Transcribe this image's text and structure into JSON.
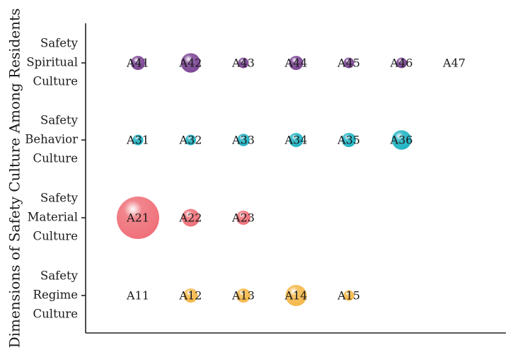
{
  "chart_data": {
    "type": "scatter",
    "title": "",
    "xlabel": "",
    "ylabel": "Dimensions of Safety Culture Among Residents",
    "grid": false,
    "legend": "none",
    "categories": [
      {
        "key": "regime",
        "lines": [
          "Safety",
          "Regime",
          "Culture"
        ]
      },
      {
        "key": "material",
        "lines": [
          "Safety",
          "Material",
          "Culture"
        ]
      },
      {
        "key": "behavior",
        "lines": [
          "Safety",
          "Behavior",
          "Culture"
        ]
      },
      {
        "key": "spiritual",
        "lines": [
          "Safety",
          "Spiritual",
          "Culture"
        ]
      }
    ],
    "series": [
      {
        "category": "regime",
        "color": "#f5b84a",
        "points": [
          {
            "label": "A11",
            "x": 1,
            "size": 0
          },
          {
            "label": "A12",
            "x": 2,
            "size": 2
          },
          {
            "label": "A13",
            "x": 3,
            "size": 2
          },
          {
            "label": "A14",
            "x": 4,
            "size": 4
          },
          {
            "label": "A15",
            "x": 5,
            "size": 1
          }
        ]
      },
      {
        "category": "material",
        "color": "#ef6f78",
        "points": [
          {
            "label": "A21",
            "x": 1,
            "size": 10
          },
          {
            "label": "A22",
            "x": 2,
            "size": 3
          },
          {
            "label": "A23",
            "x": 3,
            "size": 2
          }
        ]
      },
      {
        "category": "behavior",
        "color": "#1fb3c4",
        "points": [
          {
            "label": "A31",
            "x": 1,
            "size": 1
          },
          {
            "label": "A32",
            "x": 2,
            "size": 1
          },
          {
            "label": "A33",
            "x": 3,
            "size": 1.5
          },
          {
            "label": "A34",
            "x": 4,
            "size": 2
          },
          {
            "label": "A35",
            "x": 5,
            "size": 2
          },
          {
            "label": "A36",
            "x": 6,
            "size": 3.5
          }
        ]
      },
      {
        "category": "spiritual",
        "color": "#7d4596",
        "points": [
          {
            "label": "A41",
            "x": 1,
            "size": 2
          },
          {
            "label": "A42",
            "x": 2,
            "size": 3.5
          },
          {
            "label": "A43",
            "x": 3,
            "size": 1
          },
          {
            "label": "A44",
            "x": 4,
            "size": 2
          },
          {
            "label": "A45",
            "x": 5,
            "size": 1
          },
          {
            "label": "A46",
            "x": 6,
            "size": 1
          },
          {
            "label": "A47",
            "x": 7,
            "size": 0
          }
        ]
      }
    ]
  }
}
